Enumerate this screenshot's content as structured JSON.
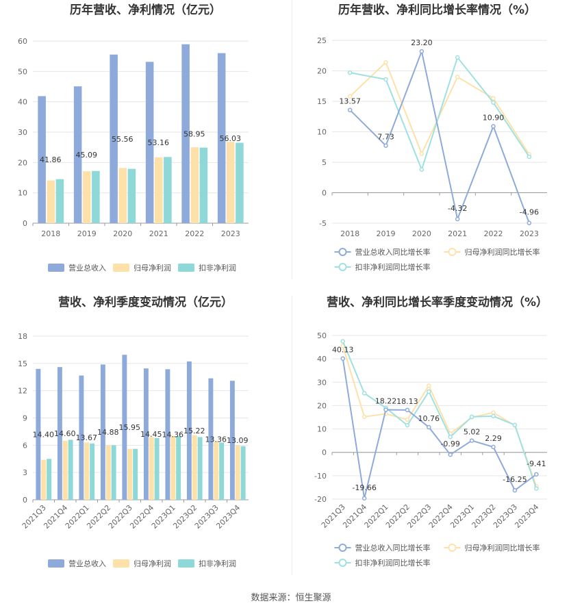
{
  "source_label": "数据来源：恒生聚源",
  "colors": {
    "revenue": "#8eaadb",
    "net_profit": "#fde1a8",
    "deducted_profit": "#8ed8d8",
    "revenue_line": "#8eaadb",
    "net_profit_line": "#fde1a8",
    "deducted_profit_line": "#9fe0e0"
  },
  "chart_data": [
    {
      "id": "annual_bar",
      "type": "bar",
      "title": "历年营收、净利情况（亿元）",
      "categories": [
        "2018",
        "2019",
        "2020",
        "2021",
        "2022",
        "2023"
      ],
      "series": [
        {
          "name": "营业总收入",
          "values": [
            41.86,
            45.09,
            55.56,
            53.16,
            58.95,
            56.03
          ],
          "labels": [
            "41.86",
            "45.09",
            "55.56",
            "53.16",
            "58.95",
            "56.03"
          ]
        },
        {
          "name": "归母净利润",
          "values": [
            14.1,
            17.1,
            18.2,
            21.7,
            25.0,
            26.8
          ]
        },
        {
          "name": "扣非净利润",
          "values": [
            14.5,
            17.2,
            17.9,
            21.8,
            24.9,
            26.5
          ]
        }
      ],
      "yticks": [
        "0",
        "10",
        "20",
        "30",
        "40",
        "50",
        "60"
      ],
      "ylim": [
        0,
        60
      ]
    },
    {
      "id": "annual_line",
      "type": "line",
      "title": "历年营收、净利同比增长率情况（%）",
      "categories": [
        "2018",
        "2019",
        "2020",
        "2021",
        "2022",
        "2023"
      ],
      "series": [
        {
          "name": "营业总收入同比增长率",
          "values": [
            13.57,
            7.73,
            23.2,
            -4.32,
            10.9,
            -4.96
          ],
          "labels": [
            "13.57",
            "7.73",
            "23.20",
            "-4.32",
            "10.90",
            "-4.96"
          ]
        },
        {
          "name": "归母净利润同比增长率",
          "values": [
            15.8,
            21.4,
            6.4,
            19.0,
            15.5,
            6.3
          ]
        },
        {
          "name": "扣非净利润同比增长率",
          "values": [
            19.7,
            18.6,
            3.8,
            22.2,
            14.8,
            5.9
          ]
        }
      ],
      "yticks": [
        "-5",
        "0",
        "5",
        "10",
        "15",
        "20",
        "25"
      ],
      "ylim": [
        -5,
        25
      ]
    },
    {
      "id": "quarter_bar",
      "type": "bar",
      "title": "营收、净利季度变动情况（亿元）",
      "categories": [
        "2021Q3",
        "2021Q4",
        "2022Q1",
        "2022Q2",
        "2022Q3",
        "2022Q4",
        "2023Q1",
        "2023Q2",
        "2023Q3",
        "2023Q4"
      ],
      "series": [
        {
          "name": "营业总收入",
          "values": [
            14.4,
            14.6,
            13.67,
            14.88,
            15.95,
            14.45,
            14.36,
            15.22,
            13.36,
            13.09
          ],
          "labels": [
            "14.40",
            "14.60",
            "13.67",
            "14.88",
            "15.95",
            "14.45",
            "14.36",
            "15.22",
            "13.36",
            "13.09"
          ]
        },
        {
          "name": "归母净利润",
          "values": [
            4.4,
            6.5,
            6.3,
            6.0,
            5.6,
            6.9,
            7.0,
            7.1,
            6.4,
            6.0
          ]
        },
        {
          "name": "扣非净利润",
          "values": [
            4.5,
            6.6,
            6.2,
            6.0,
            5.6,
            6.8,
            7.0,
            6.9,
            6.3,
            5.9
          ]
        }
      ],
      "yticks": [
        "0",
        "3",
        "6",
        "9",
        "12",
        "15",
        "18"
      ],
      "ylim": [
        0,
        18
      ]
    },
    {
      "id": "quarter_line",
      "type": "line",
      "title": "营收、净利同比增长率季度变动情况（%）",
      "categories": [
        "2021Q3",
        "2021Q4",
        "2022Q1",
        "2022Q2",
        "2022Q3",
        "2022Q4",
        "2023Q1",
        "2023Q2",
        "2023Q3",
        "2023Q4"
      ],
      "series": [
        {
          "name": "营业总收入同比增长率",
          "values": [
            40.13,
            -19.66,
            18.22,
            18.13,
            10.76,
            -0.99,
            5.02,
            2.29,
            -16.25,
            -9.41
          ],
          "labels": [
            "40.13",
            "-19.66",
            "18.22",
            "18.13",
            "10.76",
            "-0.99",
            "5.02",
            "2.29",
            "-16.25",
            "-9.41"
          ]
        },
        {
          "name": "归母净利润同比增长率",
          "values": [
            45.5,
            15.2,
            16.5,
            14.0,
            28.5,
            8.0,
            15.0,
            17.0,
            11.5,
            -14.5
          ]
        },
        {
          "name": "扣非净利润同比增长率",
          "values": [
            47.5,
            25.3,
            19.0,
            11.6,
            26.0,
            6.6,
            15.2,
            15.5,
            11.7,
            -15.5
          ]
        }
      ],
      "yticks": [
        "-20",
        "-10",
        "0",
        "10",
        "20",
        "30",
        "40",
        "50"
      ],
      "ylim": [
        -20,
        50
      ]
    }
  ]
}
